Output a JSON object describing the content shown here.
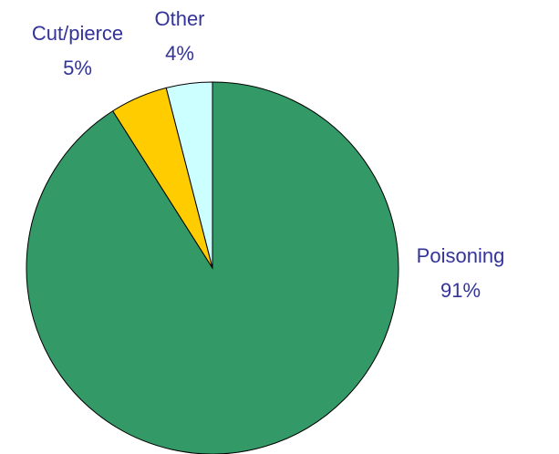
{
  "chart_data": {
    "type": "pie",
    "categories": [
      "Poisoning",
      "Cut/pierce",
      "Other"
    ],
    "values": [
      91,
      5,
      4
    ],
    "value_labels": [
      "91%",
      "5%",
      "4%"
    ],
    "colors": [
      "#339966",
      "#ffcc00",
      "#ccffff"
    ]
  }
}
